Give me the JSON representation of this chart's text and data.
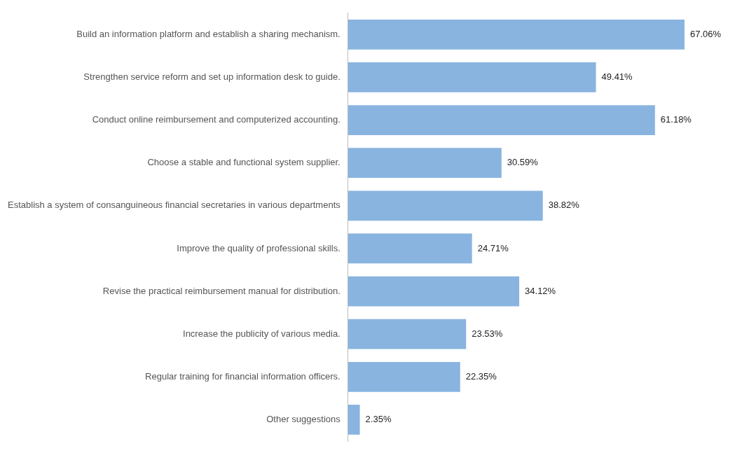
{
  "chart_data": {
    "type": "bar",
    "orientation": "horizontal",
    "categories": [
      "Build an information platform and establish a sharing mechanism.",
      "Strengthen service reform and set up information desk to guide.",
      "Conduct online reimbursement and computerized accounting.",
      "Choose a stable and functional system supplier.",
      "Establish a system of consanguineous financial secretaries in various departments",
      "Improve the quality of professional skills.",
      "Revise the practical reimbursement manual for distribution.",
      "Increase the publicity of various media.",
      "Regular training for financial information officers.",
      "Other suggestions"
    ],
    "values": [
      67.06,
      49.41,
      61.18,
      30.59,
      38.82,
      24.71,
      34.12,
      23.53,
      22.35,
      2.35
    ],
    "value_labels": [
      "67.06%",
      "49.41%",
      "61.18%",
      "30.59%",
      "38.82%",
      "24.71%",
      "34.12%",
      "23.53%",
      "22.35%",
      "2.35%"
    ],
    "color": "#89b4e0",
    "grid": false,
    "legend": false
  }
}
